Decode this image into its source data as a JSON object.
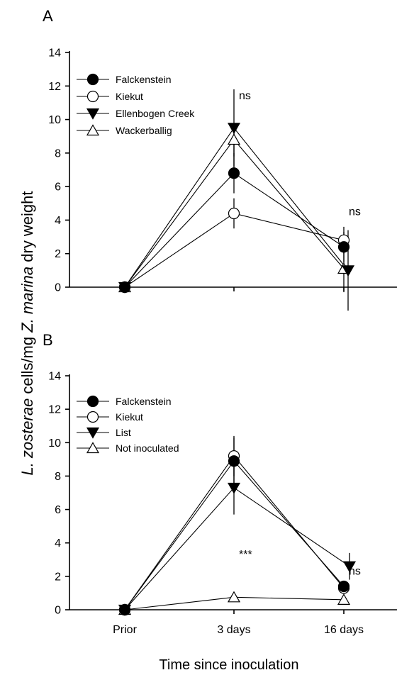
{
  "y_axis_label": {
    "italic_1": "L. zosterae",
    "plain_1": " cells/mg ",
    "italic_2": "Z. marina",
    "plain_2": " dry weight"
  },
  "x_axis_label": "Time since inoculation",
  "chart_data": [
    {
      "type": "line",
      "panel_label": "A",
      "categories": [
        "Prior",
        "3 days",
        "16 days"
      ],
      "ylim": [
        0,
        14
      ],
      "yticks": [
        0,
        2,
        4,
        6,
        8,
        10,
        12,
        14
      ],
      "show_xtick_labels": false,
      "legend_position": "top-left",
      "series": [
        {
          "name": "Falckenstein",
          "marker": "circle-filled",
          "values": [
            0,
            6.8,
            2.4
          ],
          "errors": [
            0,
            1.2,
            0.9
          ]
        },
        {
          "name": "Kiekut",
          "marker": "circle-open",
          "values": [
            0,
            4.4,
            2.8
          ],
          "errors": [
            0,
            0.9,
            0.8
          ]
        },
        {
          "name": "Ellenbogen Creek",
          "marker": "triangle-down-filled",
          "values": [
            0,
            9.5,
            1.0
          ],
          "errors": [
            0,
            2.3,
            2.4
          ]
        },
        {
          "name": "Wackerballig",
          "marker": "triangle-up-open",
          "values": [
            0,
            8.8,
            1.1
          ],
          "errors": [
            0,
            1.0,
            1.4
          ]
        }
      ],
      "annotations": [
        {
          "text": "ns",
          "x": "3 days",
          "y": 11.2
        },
        {
          "text": "ns",
          "x": "16 days",
          "y": 4.3
        }
      ]
    },
    {
      "type": "line",
      "panel_label": "B",
      "categories": [
        "Prior",
        "3 days",
        "16 days"
      ],
      "ylim": [
        0,
        14
      ],
      "yticks": [
        0,
        2,
        4,
        6,
        8,
        10,
        12,
        14
      ],
      "show_xtick_labels": true,
      "legend_position": "top-left",
      "series": [
        {
          "name": "Falckenstein",
          "marker": "circle-filled",
          "values": [
            0,
            8.9,
            1.4
          ],
          "errors": [
            0,
            1.4,
            0
          ]
        },
        {
          "name": "Kiekut",
          "marker": "circle-open",
          "values": [
            0,
            9.2,
            1.3
          ],
          "errors": [
            0,
            1.2,
            0
          ]
        },
        {
          "name": "List",
          "marker": "triangle-down-filled",
          "values": [
            0,
            7.3,
            2.6
          ],
          "errors": [
            0,
            1.6,
            0.8
          ]
        },
        {
          "name": "Not inoculated",
          "marker": "triangle-up-open",
          "values": [
            0,
            0.75,
            0.6
          ],
          "errors": [
            0,
            0,
            0
          ]
        }
      ],
      "annotations": [
        {
          "text": "***",
          "x": "3 days",
          "y": 3.1
        },
        {
          "text": "ns",
          "x": "16 days",
          "y": 2.1
        }
      ]
    }
  ]
}
